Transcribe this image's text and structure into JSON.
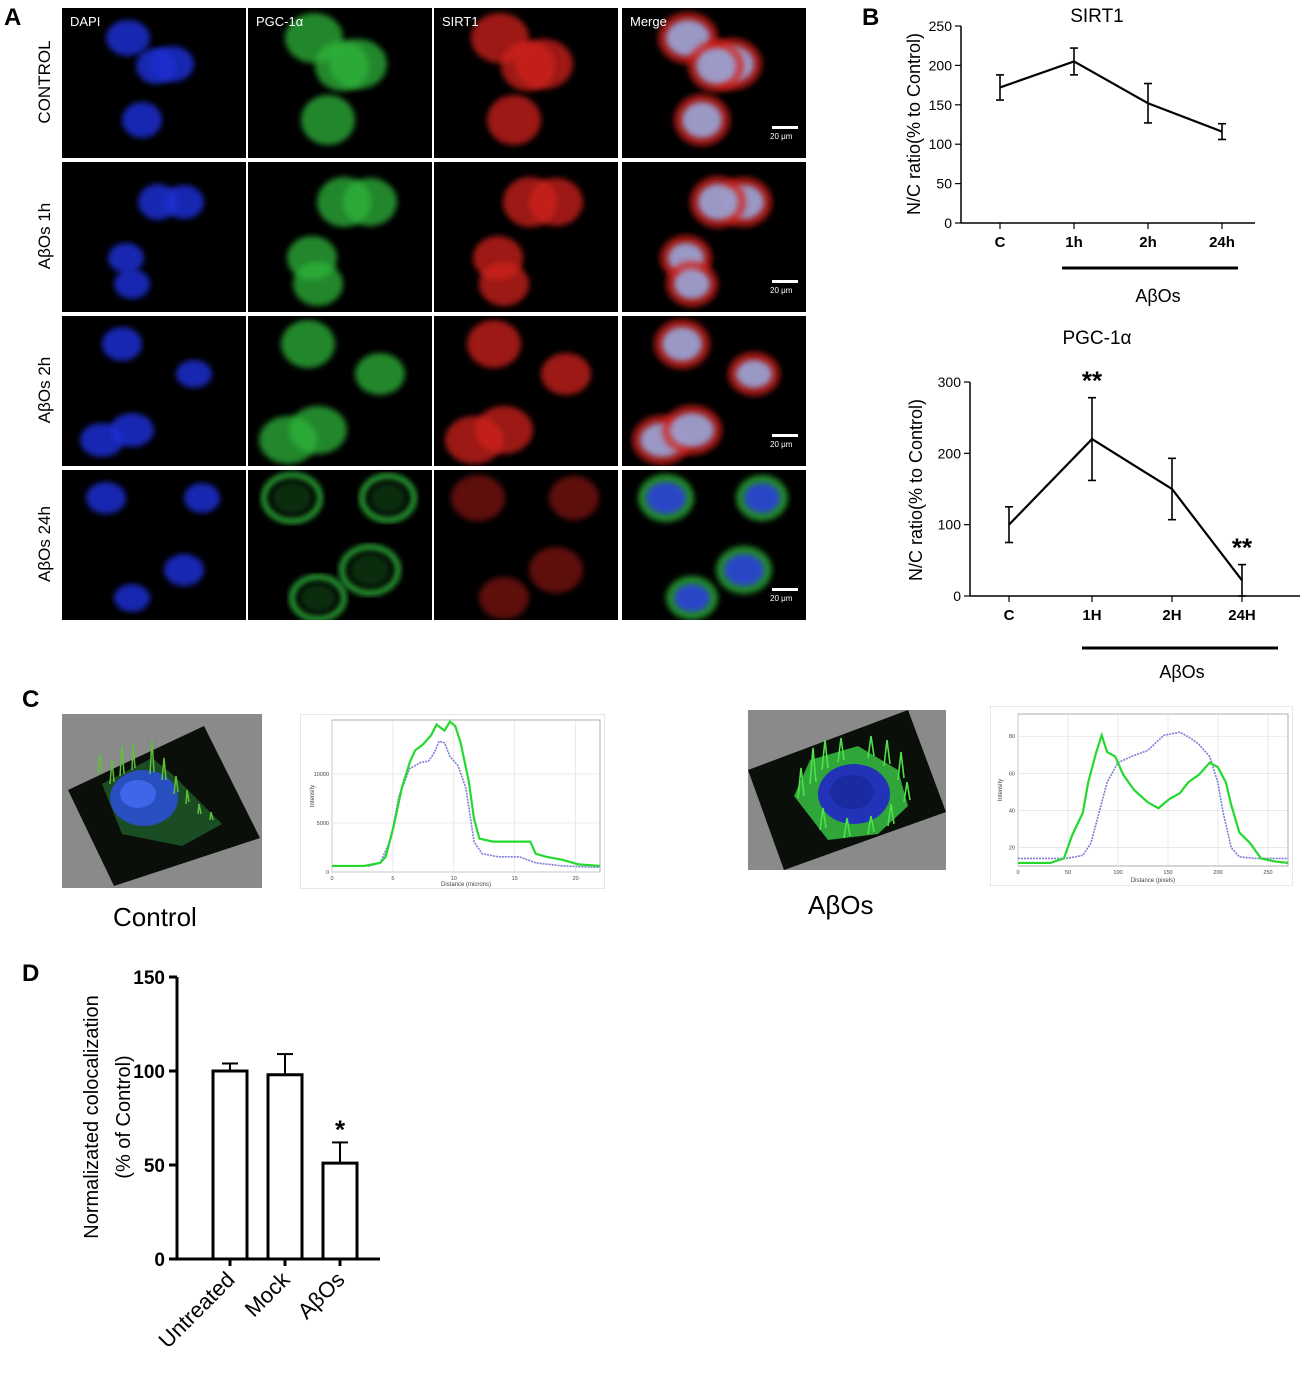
{
  "panels": {
    "A": "A",
    "B": "B",
    "C": "C",
    "D": "D"
  },
  "panel_a": {
    "columns": [
      "DAPI",
      "PGC-1α",
      "SIRT1",
      "Merge"
    ],
    "rows": [
      "CONTROL",
      "AβOs 1h",
      "AβOs 2h",
      "AβOs 24h"
    ],
    "scalebar": "20 μm",
    "colors": {
      "dapi": "#1f2fd0",
      "pgc": "#2fb53a",
      "sirt": "#d0241c"
    }
  },
  "panel_c": {
    "left_caption": "Control",
    "right_caption": "AβOs",
    "profile_left": {
      "xlabel": "Distance (microns)",
      "ylabel": "Intensity",
      "xticks": [
        "0",
        "5",
        "10",
        "15",
        "20"
      ],
      "yticks": [
        "0",
        "5000",
        "10000"
      ]
    },
    "profile_right": {
      "xlabel": "Distance (pixels)",
      "ylabel": "Intensity",
      "xticks": [
        "0",
        "50",
        "100",
        "150",
        "200",
        "250"
      ],
      "yticks": [
        "20",
        "40",
        "60",
        "80"
      ]
    }
  },
  "chart_data": [
    {
      "type": "line",
      "title": "SIRT1",
      "ylabel": "N/C ratio(% to Control)",
      "categories": [
        "C",
        "1h",
        "2h",
        "24h"
      ],
      "values": [
        172,
        205,
        152,
        116
      ],
      "errors": [
        16,
        17,
        25,
        10
      ],
      "ylim": [
        0,
        250
      ],
      "yticks": [
        0,
        50,
        100,
        150,
        200,
        250
      ],
      "bracket_label": "AβOs",
      "annotations": []
    },
    {
      "type": "line",
      "title": "PGC-1α",
      "ylabel": "N/C ratio(% to Control)",
      "categories": [
        "C",
        "1H",
        "2H",
        "24H"
      ],
      "values": [
        100,
        220,
        150,
        22
      ],
      "errors": [
        25,
        58,
        43,
        22
      ],
      "ylim": [
        0,
        300
      ],
      "yticks": [
        0,
        100,
        200,
        300
      ],
      "bracket_label": "AβOs",
      "annotations": [
        "",
        "**",
        "",
        "**"
      ]
    },
    {
      "type": "bar",
      "title": "",
      "ylabel": "Normalizated colocalization (% of Control)",
      "categories": [
        "Untreated",
        "Mock",
        "AβOs"
      ],
      "values": [
        100,
        98,
        51
      ],
      "errors": [
        4,
        11,
        11
      ],
      "ylim": [
        0,
        150
      ],
      "yticks": [
        0,
        50,
        100,
        150
      ],
      "annotations": [
        "",
        "",
        "*"
      ]
    }
  ]
}
